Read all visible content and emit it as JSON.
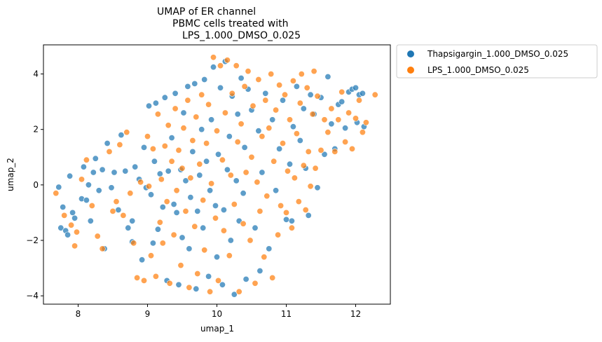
{
  "chart_data": {
    "type": "scatter",
    "title_lines": [
      "UMAP of ER channel",
      "PBMC cells treated with",
      "LPS_1.000_DMSO_0.025"
    ],
    "xlabel": "umap_1",
    "ylabel": "umap_2",
    "xlim": [
      7.5,
      12.5
    ],
    "ylim": [
      -4.3,
      5.05
    ],
    "xticks": [
      8,
      9,
      10,
      11,
      12
    ],
    "yticks": [
      -4,
      -2,
      0,
      2,
      4
    ],
    "grid": false,
    "legend_position": "outside-upper-right",
    "series": [
      {
        "name": "Thapsigargin_1.000_DMSO_0.025",
        "color": "#1f77b4",
        "points": [
          [
            7.72,
            -0.08
          ],
          [
            7.75,
            -1.55
          ],
          [
            7.78,
            -0.8
          ],
          [
            7.82,
            -1.65
          ],
          [
            7.85,
            -1.8
          ],
          [
            7.88,
            0.32
          ],
          [
            7.92,
            -1.0
          ],
          [
            7.95,
            -1.2
          ],
          [
            8.05,
            -0.5
          ],
          [
            8.08,
            0.65
          ],
          [
            8.12,
            -0.55
          ],
          [
            8.15,
            0.0
          ],
          [
            8.18,
            -1.3
          ],
          [
            8.22,
            0.45
          ],
          [
            8.25,
            0.95
          ],
          [
            8.3,
            -0.2
          ],
          [
            8.35,
            0.55
          ],
          [
            8.38,
            -2.3
          ],
          [
            8.42,
            1.5
          ],
          [
            8.48,
            -0.1
          ],
          [
            8.52,
            0.45
          ],
          [
            8.58,
            -0.9
          ],
          [
            8.62,
            1.8
          ],
          [
            8.68,
            0.5
          ],
          [
            8.72,
            -1.55
          ],
          [
            8.78,
            -2.05
          ],
          [
            8.82,
            0.65
          ],
          [
            8.88,
            0.2
          ],
          [
            8.92,
            -2.7
          ],
          [
            8.95,
            1.35
          ],
          [
            8.98,
            -0.1
          ],
          [
            8.78,
            -1.3
          ],
          [
            9.02,
            2.85
          ],
          [
            9.05,
            -0.35
          ],
          [
            9.08,
            -2.1
          ],
          [
            9.1,
            0.85
          ],
          [
            9.12,
            2.95
          ],
          [
            9.15,
            -1.6
          ],
          [
            9.18,
            0.4
          ],
          [
            9.22,
            -0.8
          ],
          [
            9.25,
            3.15
          ],
          [
            9.28,
            -3.45
          ],
          [
            9.3,
            0.5
          ],
          [
            9.35,
            1.7
          ],
          [
            9.38,
            -0.7
          ],
          [
            9.4,
            3.3
          ],
          [
            9.42,
            -1.0
          ],
          [
            9.45,
            -3.6
          ],
          [
            9.48,
            0.55
          ],
          [
            9.5,
            -1.9
          ],
          [
            9.52,
            2.6
          ],
          [
            9.55,
            0.15
          ],
          [
            9.58,
            3.55
          ],
          [
            9.6,
            -2.3
          ],
          [
            9.62,
            -0.45
          ],
          [
            9.65,
            1.2
          ],
          [
            9.68,
            3.65
          ],
          [
            9.7,
            -3.75
          ],
          [
            9.72,
            -0.95
          ],
          [
            9.75,
            0.35
          ],
          [
            9.78,
            2.0
          ],
          [
            9.8,
            -1.55
          ],
          [
            9.82,
            3.8
          ],
          [
            9.85,
            0.85
          ],
          [
            9.88,
            -3.3
          ],
          [
            9.9,
            -0.2
          ],
          [
            9.92,
            2.35
          ],
          [
            9.95,
            4.25
          ],
          [
            9.98,
            -0.75
          ],
          [
            10.0,
            -2.6
          ],
          [
            10.02,
            1.1
          ],
          [
            10.05,
            3.5
          ],
          [
            10.08,
            -3.6
          ],
          [
            10.1,
            -0.9
          ],
          [
            10.12,
            4.45
          ],
          [
            10.15,
            0.55
          ],
          [
            10.18,
            1.75
          ],
          [
            10.2,
            -2.0
          ],
          [
            10.22,
            3.2
          ],
          [
            10.25,
            -3.95
          ],
          [
            10.28,
            0.15
          ],
          [
            10.3,
            2.55
          ],
          [
            10.32,
            -1.3
          ],
          [
            10.35,
            3.85
          ],
          [
            10.38,
            -0.3
          ],
          [
            10.4,
            1.35
          ],
          [
            10.42,
            -3.4
          ],
          [
            10.45,
            3.45
          ],
          [
            10.5,
            2.7
          ],
          [
            10.55,
            -1.55
          ],
          [
            10.6,
            1.95
          ],
          [
            10.62,
            -3.1
          ],
          [
            10.65,
            0.45
          ],
          [
            10.7,
            3.3
          ],
          [
            10.75,
            -2.3
          ],
          [
            10.8,
            2.35
          ],
          [
            10.85,
            -0.2
          ],
          [
            10.9,
            1.3
          ],
          [
            10.95,
            3.05
          ],
          [
            11.0,
            -1.25
          ],
          [
            11.05,
            0.75
          ],
          [
            11.08,
            -1.3
          ],
          [
            11.1,
            2.1
          ],
          [
            11.15,
            3.55
          ],
          [
            11.2,
            1.6
          ],
          [
            11.25,
            2.75
          ],
          [
            11.28,
            0.6
          ],
          [
            11.32,
            -1.1
          ],
          [
            11.35,
            3.25
          ],
          [
            11.4,
            2.55
          ],
          [
            11.45,
            -0.1
          ],
          [
            11.5,
            3.15
          ],
          [
            11.55,
            1.1
          ],
          [
            11.6,
            3.9
          ],
          [
            11.65,
            2.2
          ],
          [
            11.7,
            1.3
          ],
          [
            11.75,
            2.9
          ],
          [
            11.8,
            3.0
          ],
          [
            11.85,
            2.05
          ],
          [
            11.9,
            3.35
          ],
          [
            11.95,
            3.45
          ],
          [
            12.0,
            3.5
          ],
          [
            12.02,
            2.25
          ],
          [
            12.05,
            3.25
          ],
          [
            12.1,
            3.3
          ],
          [
            12.12,
            2.1
          ]
        ]
      },
      {
        "name": "LPS_1.000_DMSO_0.025",
        "color": "#ff7f0e",
        "points": [
          [
            7.68,
            -0.3
          ],
          [
            7.8,
            -1.1
          ],
          [
            7.9,
            -1.45
          ],
          [
            7.95,
            -2.2
          ],
          [
            7.98,
            -1.7
          ],
          [
            8.05,
            0.2
          ],
          [
            8.12,
            0.9
          ],
          [
            8.2,
            -0.75
          ],
          [
            8.28,
            -1.85
          ],
          [
            8.35,
            -2.3
          ],
          [
            8.45,
            1.2
          ],
          [
            8.5,
            -0.95
          ],
          [
            8.55,
            -0.6
          ],
          [
            8.6,
            1.45
          ],
          [
            8.65,
            -1.1
          ],
          [
            8.7,
            1.9
          ],
          [
            8.75,
            -0.3
          ],
          [
            8.8,
            -2.1
          ],
          [
            8.85,
            -3.35
          ],
          [
            8.9,
            0.1
          ],
          [
            8.95,
            -3.45
          ],
          [
            9.0,
            1.75
          ],
          [
            9.02,
            -0.05
          ],
          [
            9.05,
            -2.55
          ],
          [
            9.08,
            1.3
          ],
          [
            9.12,
            -3.3
          ],
          [
            9.15,
            2.55
          ],
          [
            9.18,
            -1.35
          ],
          [
            9.2,
            0.2
          ],
          [
            9.22,
            -2.1
          ],
          [
            9.25,
            1.4
          ],
          [
            9.28,
            -0.6
          ],
          [
            9.3,
            2.15
          ],
          [
            9.32,
            -3.55
          ],
          [
            9.35,
            0.85
          ],
          [
            9.38,
            -1.8
          ],
          [
            9.4,
            2.75
          ],
          [
            9.42,
            -0.2
          ],
          [
            9.45,
            1.25
          ],
          [
            9.48,
            -2.9
          ],
          [
            9.5,
            0.6
          ],
          [
            9.52,
            2.05
          ],
          [
            9.55,
            -0.95
          ],
          [
            9.58,
            3.05
          ],
          [
            9.6,
            -3.7
          ],
          [
            9.62,
            0.25
          ],
          [
            9.65,
            1.6
          ],
          [
            9.68,
            -1.5
          ],
          [
            9.7,
            2.45
          ],
          [
            9.72,
            -3.2
          ],
          [
            9.75,
            0.75
          ],
          [
            9.78,
            3.25
          ],
          [
            9.8,
            -0.55
          ],
          [
            9.82,
            -2.35
          ],
          [
            9.85,
            1.5
          ],
          [
            9.88,
            2.9
          ],
          [
            9.9,
            -3.85
          ],
          [
            9.92,
            0.05
          ],
          [
            9.95,
            4.6
          ],
          [
            9.98,
            -1.2
          ],
          [
            10.0,
            1.95
          ],
          [
            10.02,
            -3.45
          ],
          [
            10.05,
            4.3
          ],
          [
            10.08,
            0.9
          ],
          [
            10.1,
            -1.65
          ],
          [
            10.12,
            2.6
          ],
          [
            10.15,
            4.5
          ],
          [
            10.18,
            -2.55
          ],
          [
            10.2,
            0.35
          ],
          [
            10.22,
            3.3
          ],
          [
            10.25,
            -0.7
          ],
          [
            10.28,
            4.3
          ],
          [
            10.3,
            1.55
          ],
          [
            10.32,
            -3.85
          ],
          [
            10.35,
            2.2
          ],
          [
            10.38,
            -1.4
          ],
          [
            10.4,
            3.55
          ],
          [
            10.42,
            0.45
          ],
          [
            10.45,
            4.1
          ],
          [
            10.48,
            -2.0
          ],
          [
            10.5,
            1.0
          ],
          [
            10.52,
            2.85
          ],
          [
            10.55,
            -3.55
          ],
          [
            10.58,
            0.1
          ],
          [
            10.6,
            3.8
          ],
          [
            10.62,
            -0.95
          ],
          [
            10.65,
            1.75
          ],
          [
            10.68,
            -2.6
          ],
          [
            10.7,
            3.05
          ],
          [
            10.72,
            -0.4
          ],
          [
            10.75,
            2.05
          ],
          [
            10.78,
            4.0
          ],
          [
            10.8,
            -3.35
          ],
          [
            10.82,
            0.85
          ],
          [
            10.85,
            2.7
          ],
          [
            10.88,
            -1.8
          ],
          [
            10.9,
            3.6
          ],
          [
            10.92,
            -0.75
          ],
          [
            10.95,
            1.5
          ],
          [
            10.98,
            3.25
          ],
          [
            11.0,
            -1.0
          ],
          [
            11.02,
            0.5
          ],
          [
            11.05,
            2.35
          ],
          [
            11.08,
            -1.55
          ],
          [
            11.1,
            3.75
          ],
          [
            11.12,
            0.25
          ],
          [
            11.15,
            1.85
          ],
          [
            11.18,
            -0.6
          ],
          [
            11.2,
            2.95
          ],
          [
            11.22,
            4.0
          ],
          [
            11.25,
            0.7
          ],
          [
            11.28,
            -0.9
          ],
          [
            11.3,
            3.5
          ],
          [
            11.32,
            1.2
          ],
          [
            11.35,
            -0.05
          ],
          [
            11.38,
            2.55
          ],
          [
            11.4,
            4.1
          ],
          [
            11.42,
            0.6
          ],
          [
            11.45,
            3.2
          ],
          [
            11.5,
            1.25
          ],
          [
            11.55,
            2.35
          ],
          [
            11.6,
            1.9
          ],
          [
            11.65,
            2.75
          ],
          [
            11.7,
            1.2
          ],
          [
            11.75,
            2.35
          ],
          [
            11.8,
            3.35
          ],
          [
            11.85,
            1.55
          ],
          [
            11.9,
            2.6
          ],
          [
            11.95,
            1.3
          ],
          [
            12.0,
            2.4
          ],
          [
            12.05,
            3.05
          ],
          [
            12.1,
            1.9
          ],
          [
            12.15,
            2.25
          ],
          [
            12.28,
            3.25
          ]
        ]
      }
    ]
  }
}
